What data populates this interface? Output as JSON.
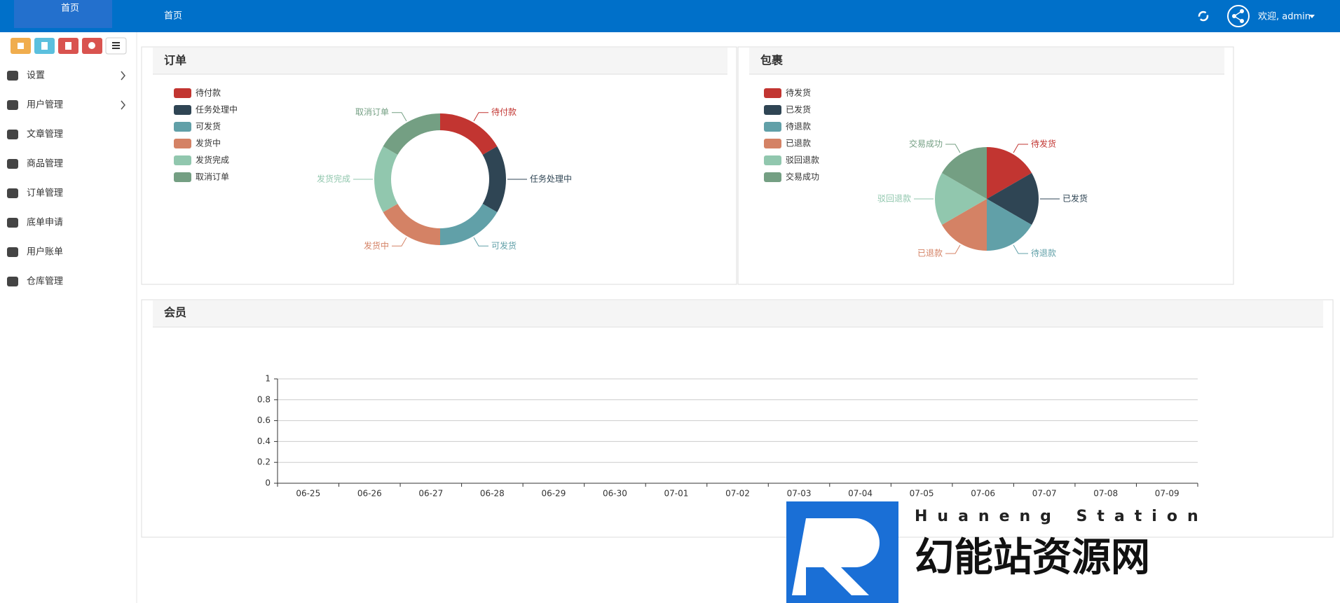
{
  "header": {
    "brand": "首页",
    "nav": "首页",
    "user": "欢迎, admin"
  },
  "sidebar": {
    "menu": [
      "设置",
      "用户管理",
      "文章管理",
      "商品管理",
      "订单管理",
      "底单申请",
      "用户账单",
      "仓库管理"
    ]
  },
  "watermark": {
    "latin": "Huaneng Station",
    "brand": "幻能站资源网"
  },
  "chart_data": [
    {
      "type": "pie",
      "title": "订单",
      "donut": true,
      "categories": [
        "待付款",
        "任务处理中",
        "可发货",
        "发货中",
        "发货完成",
        "取消订单"
      ],
      "values": [
        1,
        1,
        1,
        1,
        1,
        1
      ],
      "colors": [
        "#c23531",
        "#2f4554",
        "#61a0a8",
        "#d48265",
        "#91c7ae",
        "#749f83"
      ]
    },
    {
      "type": "pie",
      "title": "包裹",
      "donut": false,
      "categories": [
        "待发货",
        "已发货",
        "待退款",
        "已退款",
        "驳回退款",
        "交易成功"
      ],
      "values": [
        1,
        1,
        1,
        1,
        1,
        1
      ],
      "colors": [
        "#c23531",
        "#2f4554",
        "#61a0a8",
        "#d48265",
        "#91c7ae",
        "#749f83"
      ]
    },
    {
      "type": "line",
      "title": "会员",
      "categories": [
        "06-25",
        "06-26",
        "06-27",
        "06-28",
        "06-29",
        "06-30",
        "07-01",
        "07-02",
        "07-03",
        "07-04",
        "07-05",
        "07-06",
        "07-07",
        "07-08",
        "07-09"
      ],
      "ylim": [
        0,
        1
      ],
      "yticks": [
        0,
        0.2,
        0.4,
        0.6,
        0.8,
        1
      ],
      "grid": true
    }
  ]
}
